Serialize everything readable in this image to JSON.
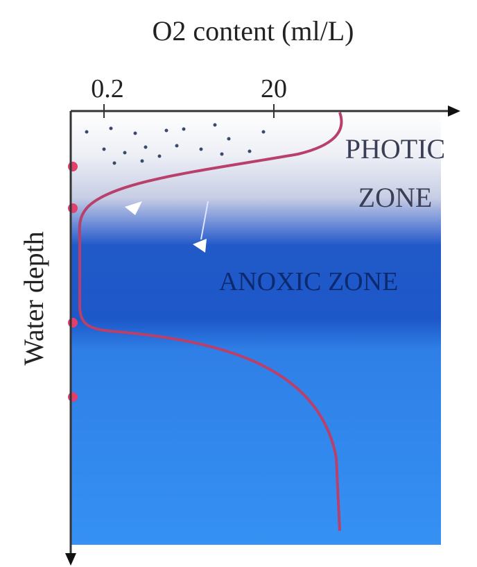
{
  "title": "O2 content (ml/L)",
  "x_axis": {
    "ticks": [
      "0.2",
      "20"
    ]
  },
  "y_axis": {
    "label": "Water depth"
  },
  "zones": {
    "photic": [
      "PHOTIC",
      "ZONE"
    ],
    "anoxic": "ANOXIC ZONE"
  }
}
